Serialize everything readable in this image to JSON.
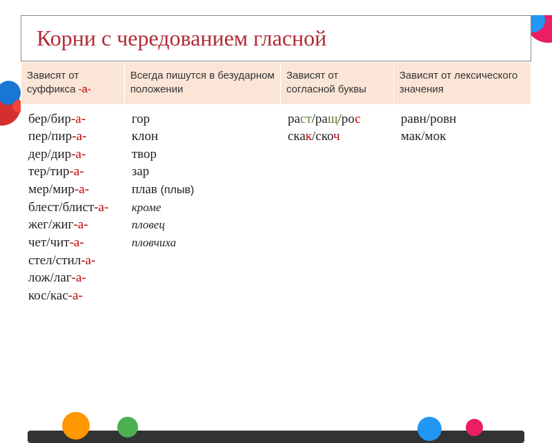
{
  "title": "Корни с чередованием гласной",
  "headers": [
    "Зависят от суффикса  ",
    "Всегда пишутся в безударном положении",
    "Зависят от согласной буквы",
    "Зависят от лексического значения"
  ],
  "header_suffix_a": "-а-",
  "col1": {
    "lines": [
      {
        "root": "бер/бир",
        "suf": "-а-"
      },
      {
        "root": "пер/пир",
        "suf": "-а-"
      },
      {
        "root": "дер/дир",
        "suf": "-а-"
      },
      {
        "root": "тер/тир",
        "suf": "-а-"
      },
      {
        "root": "мер/мир",
        "suf": "-а-"
      },
      {
        "root": "блест/блист",
        "suf": "-а-"
      },
      {
        "root": "жег/жиг",
        "suf": "-а-"
      },
      {
        "root": "чет/чит",
        "suf": "-а-"
      },
      {
        "root": "стел/стил",
        "suf": "-а-"
      },
      {
        "root": "лож/лаг",
        "suf": "-а-"
      },
      {
        "root": "кос/кас",
        "suf": "-а-"
      }
    ]
  },
  "col2": {
    "lines": [
      "гор",
      "клон",
      "твор",
      "зар"
    ],
    "plav_pre": "плав ",
    "plav_paren": "(плыв)",
    "except_label": "кроме",
    "except1": "пловец",
    "except2": "пловчиха"
  },
  "col3": {
    "line1_parts": [
      "ра",
      "ст",
      "/ра",
      "щ",
      "/ро",
      "с"
    ],
    "line2_parts": [
      "ска",
      "к",
      "/ско",
      "ч"
    ]
  },
  "col4": {
    "line1": "равн/ровн",
    "line2": "мак/мок"
  },
  "colors": {
    "title": "#b02a37",
    "header_bg": "#fbe5d6",
    "red": "#c00000",
    "green": "#548235"
  }
}
